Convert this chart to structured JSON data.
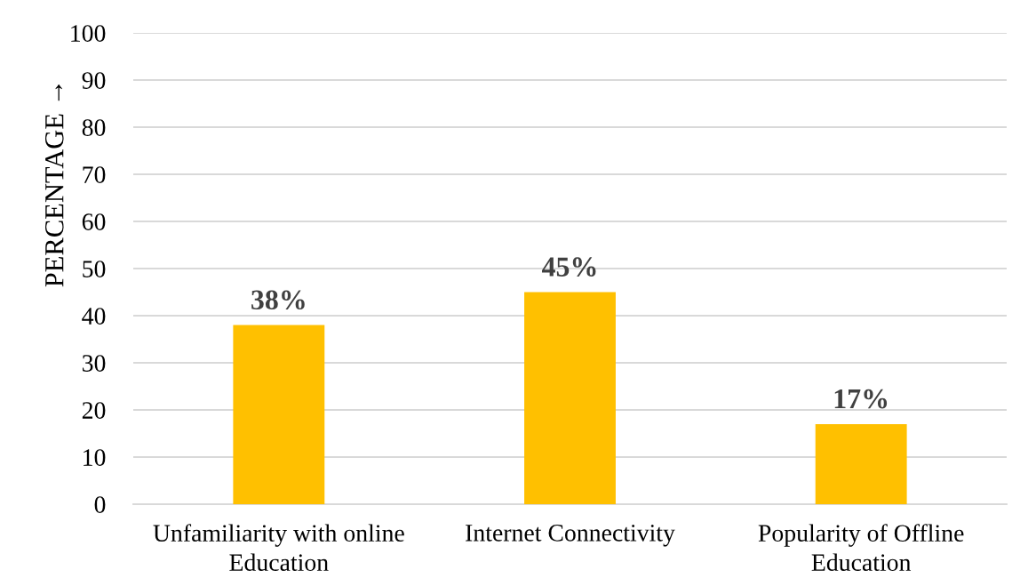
{
  "chart_data": {
    "type": "bar",
    "ylabel": "PERCENTAGE →",
    "categories": [
      "Unfamiliarity with online\nEducation",
      "Internet Connectivity",
      "Popularity of Offline\nEducation"
    ],
    "values": [
      38,
      45,
      17
    ],
    "value_labels": [
      "38%",
      "45%",
      "17%"
    ],
    "color": "#ffc000",
    "ylim": [
      0,
      100
    ],
    "yticks": [
      0,
      10,
      20,
      30,
      40,
      50,
      60,
      70,
      80,
      90,
      100
    ],
    "grid": "y"
  }
}
